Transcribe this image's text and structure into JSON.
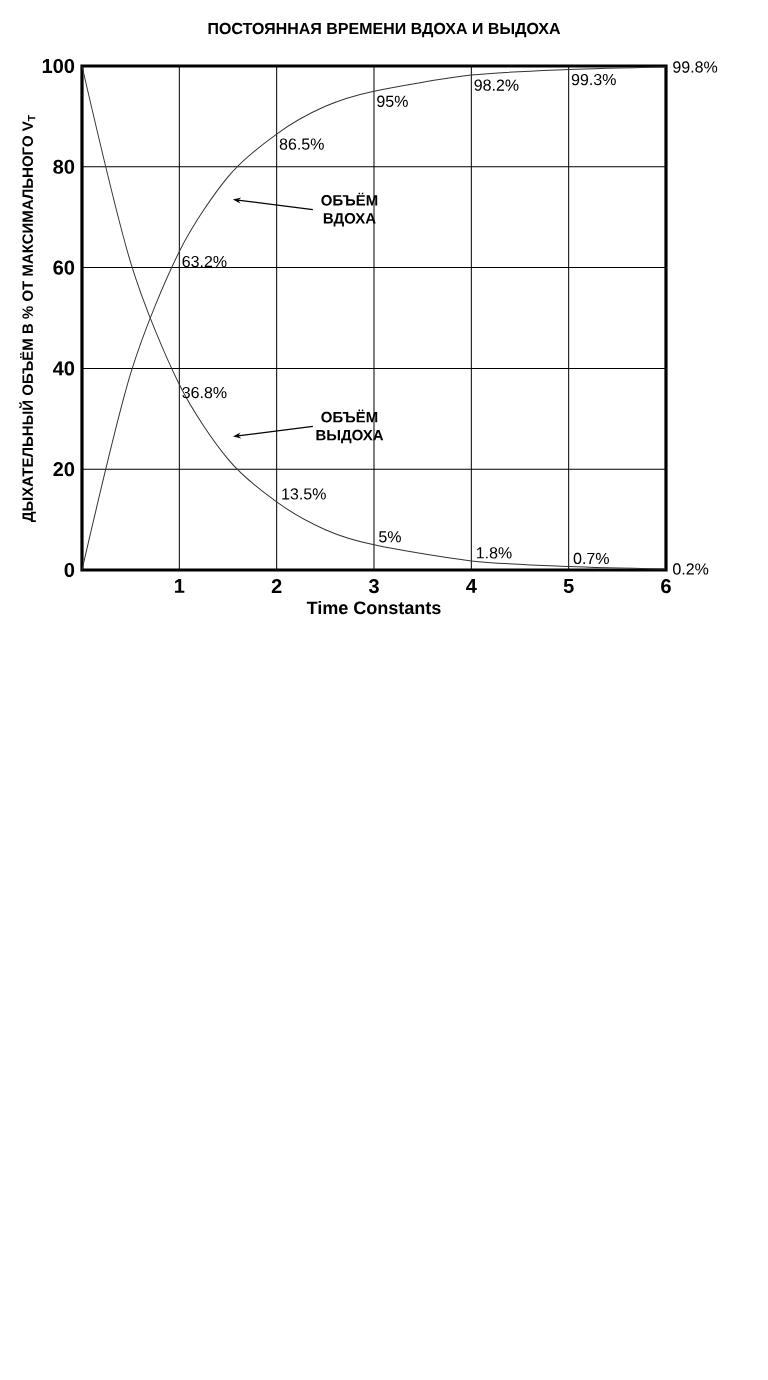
{
  "chart_data": {
    "type": "line",
    "title": "ПОСТОЯННАЯ ВРЕМЕНИ ВДОХА И ВЫДОХА",
    "xlabel": "Time Constants",
    "ylabel": "ДЫХАТЕЛЬНЫЙ ОБЪЁМ В % ОТ МАКСИМАЛЬНОГО V$_{T}$",
    "series": [
      {
        "color": "#333333",
        "x": [
          0,
          0.5,
          1,
          1.5,
          2,
          2.5,
          3,
          4,
          5,
          6
        ],
        "values": [
          0,
          39,
          63.2,
          78,
          86.5,
          92,
          95,
          98.2,
          99.3,
          99.8
        ],
        "value_labels": [
          null,
          null,
          "63.2%",
          null,
          "86.5%",
          null,
          "95%",
          "98.2%",
          "99.3%",
          "99.8%"
        ]
      },
      {
        "color": "#333333",
        "x": [
          0,
          0.5,
          1,
          1.5,
          2,
          2.5,
          3,
          4,
          5,
          6
        ],
        "values": [
          100,
          61,
          36.8,
          22,
          13.5,
          8,
          5,
          1.8,
          0.7,
          0.2
        ],
        "value_labels": [
          null,
          null,
          "36.8%",
          null,
          "13.5%",
          null,
          "5%",
          "1.8%",
          "0.7%",
          "0.2%"
        ]
      }
    ],
    "annotations": [
      {
        "text": "ОБЪЁМ ВДОХА",
        "x": 1.55,
        "y": 73.5
      },
      {
        "text": "ОБЪЁМ ВЫДОХА",
        "x": 1.55,
        "y": 26.5
      }
    ],
    "xlim": [
      0,
      6
    ],
    "ylim": [
      0,
      100
    ],
    "xticks": [
      1,
      2,
      3,
      4,
      5,
      6
    ],
    "yticks": [
      0,
      20,
      40,
      60,
      80,
      100
    ],
    "grid": true,
    "marker": "none",
    "line_style": "solid"
  }
}
